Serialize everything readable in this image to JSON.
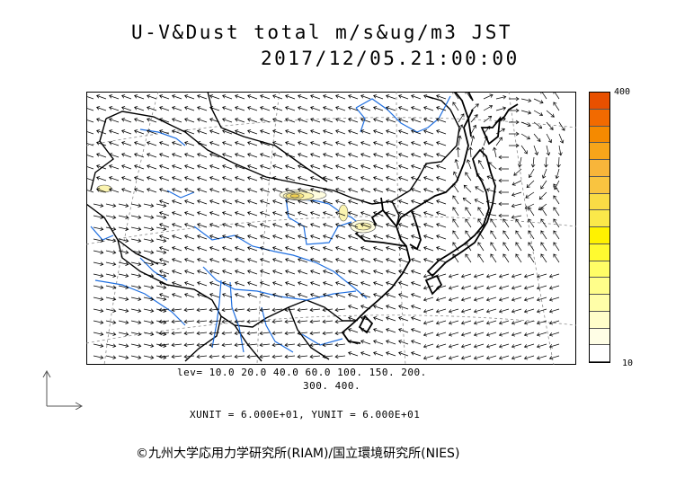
{
  "header": {
    "title": "U-V&Dust total m/s&ug/m3 JST",
    "timestamp": "2017/12/05.21:00:00"
  },
  "colorbar": {
    "max_label": "400",
    "min_label": "10",
    "colors": [
      "#e85000",
      "#f26a00",
      "#f58a00",
      "#f7a51a",
      "#f8b53a",
      "#f9c440",
      "#fadc45",
      "#fbe84a",
      "#fff200",
      "#fffa30",
      "#fffd66",
      "#fffe8a",
      "#fffea8",
      "#fffeca",
      "#fffee6",
      "#ffffff"
    ]
  },
  "legend": {
    "levels_line1": "lev= 10.0 20.0 40.0 60.0 100. 150. 200.",
    "levels_line2": "300. 400.",
    "units_line": "XUNIT = 6.000E+01, YUNIT = 6.000E+01"
  },
  "credit": "©九州大学応用力学研究所(RIAM)/国立環境研究所(NIES)",
  "map": {
    "coast_color": "#000000",
    "river_color": "#1f6fe0",
    "border_color": "#000000",
    "grid_color": "#888888",
    "dust_colors": [
      "#fffde0",
      "#fbf4b0",
      "#f5e27a"
    ]
  }
}
